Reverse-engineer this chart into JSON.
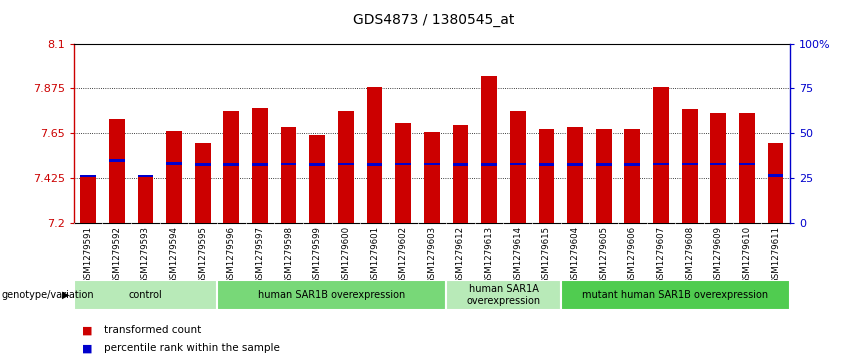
{
  "title": "GDS4873 / 1380545_at",
  "samples": [
    "GSM1279591",
    "GSM1279592",
    "GSM1279593",
    "GSM1279594",
    "GSM1279595",
    "GSM1279596",
    "GSM1279597",
    "GSM1279598",
    "GSM1279599",
    "GSM1279600",
    "GSM1279601",
    "GSM1279602",
    "GSM1279603",
    "GSM1279612",
    "GSM1279613",
    "GSM1279614",
    "GSM1279615",
    "GSM1279604",
    "GSM1279605",
    "GSM1279606",
    "GSM1279607",
    "GSM1279608",
    "GSM1279609",
    "GSM1279610",
    "GSM1279611"
  ],
  "red_values": [
    7.435,
    7.72,
    7.435,
    7.66,
    7.6,
    7.76,
    7.775,
    7.68,
    7.64,
    7.76,
    7.88,
    7.7,
    7.655,
    7.69,
    7.94,
    7.76,
    7.67,
    7.68,
    7.67,
    7.67,
    7.88,
    7.77,
    7.75,
    7.75,
    7.6
  ],
  "blue_values": [
    7.438,
    7.515,
    7.438,
    7.5,
    7.495,
    7.495,
    7.495,
    7.497,
    7.495,
    7.497,
    7.495,
    7.497,
    7.497,
    7.495,
    7.495,
    7.497,
    7.495,
    7.495,
    7.495,
    7.495,
    7.497,
    7.497,
    7.497,
    7.497,
    7.44
  ],
  "groups": [
    {
      "label": "control",
      "start": 0,
      "end": 5,
      "color": "#b8eab8"
    },
    {
      "label": "human SAR1B overexpression",
      "start": 5,
      "end": 13,
      "color": "#78d878"
    },
    {
      "label": "human SAR1A\noverexpression",
      "start": 13,
      "end": 17,
      "color": "#b8eab8"
    },
    {
      "label": "mutant human SAR1B overexpression",
      "start": 17,
      "end": 25,
      "color": "#50cc50"
    }
  ],
  "ymin": 7.2,
  "ymax": 8.1,
  "yticks": [
    7.2,
    7.425,
    7.65,
    7.875,
    8.1
  ],
  "ytick_labels": [
    "7.2",
    "7.425",
    "7.65",
    "7.875",
    "8.1"
  ],
  "right_ytick_pcts": [
    0,
    25,
    50,
    75,
    100
  ],
  "right_ytick_labels": [
    "0",
    "25",
    "50",
    "75",
    "100%"
  ],
  "bar_color_red": "#cc0000",
  "bar_color_blue": "#0000cc",
  "bar_width": 0.55,
  "blue_bar_width": 0.55,
  "blue_bar_height": 0.012,
  "left_axis_color": "#cc0000",
  "right_axis_color": "#0000cc",
  "grid_color": "#000000",
  "tick_area_bg": "#c8c8c8",
  "genotype_label": "genotype/variation",
  "legend_items": [
    {
      "label": "transformed count",
      "color": "#cc0000"
    },
    {
      "label": "percentile rank within the sample",
      "color": "#0000cc"
    }
  ]
}
